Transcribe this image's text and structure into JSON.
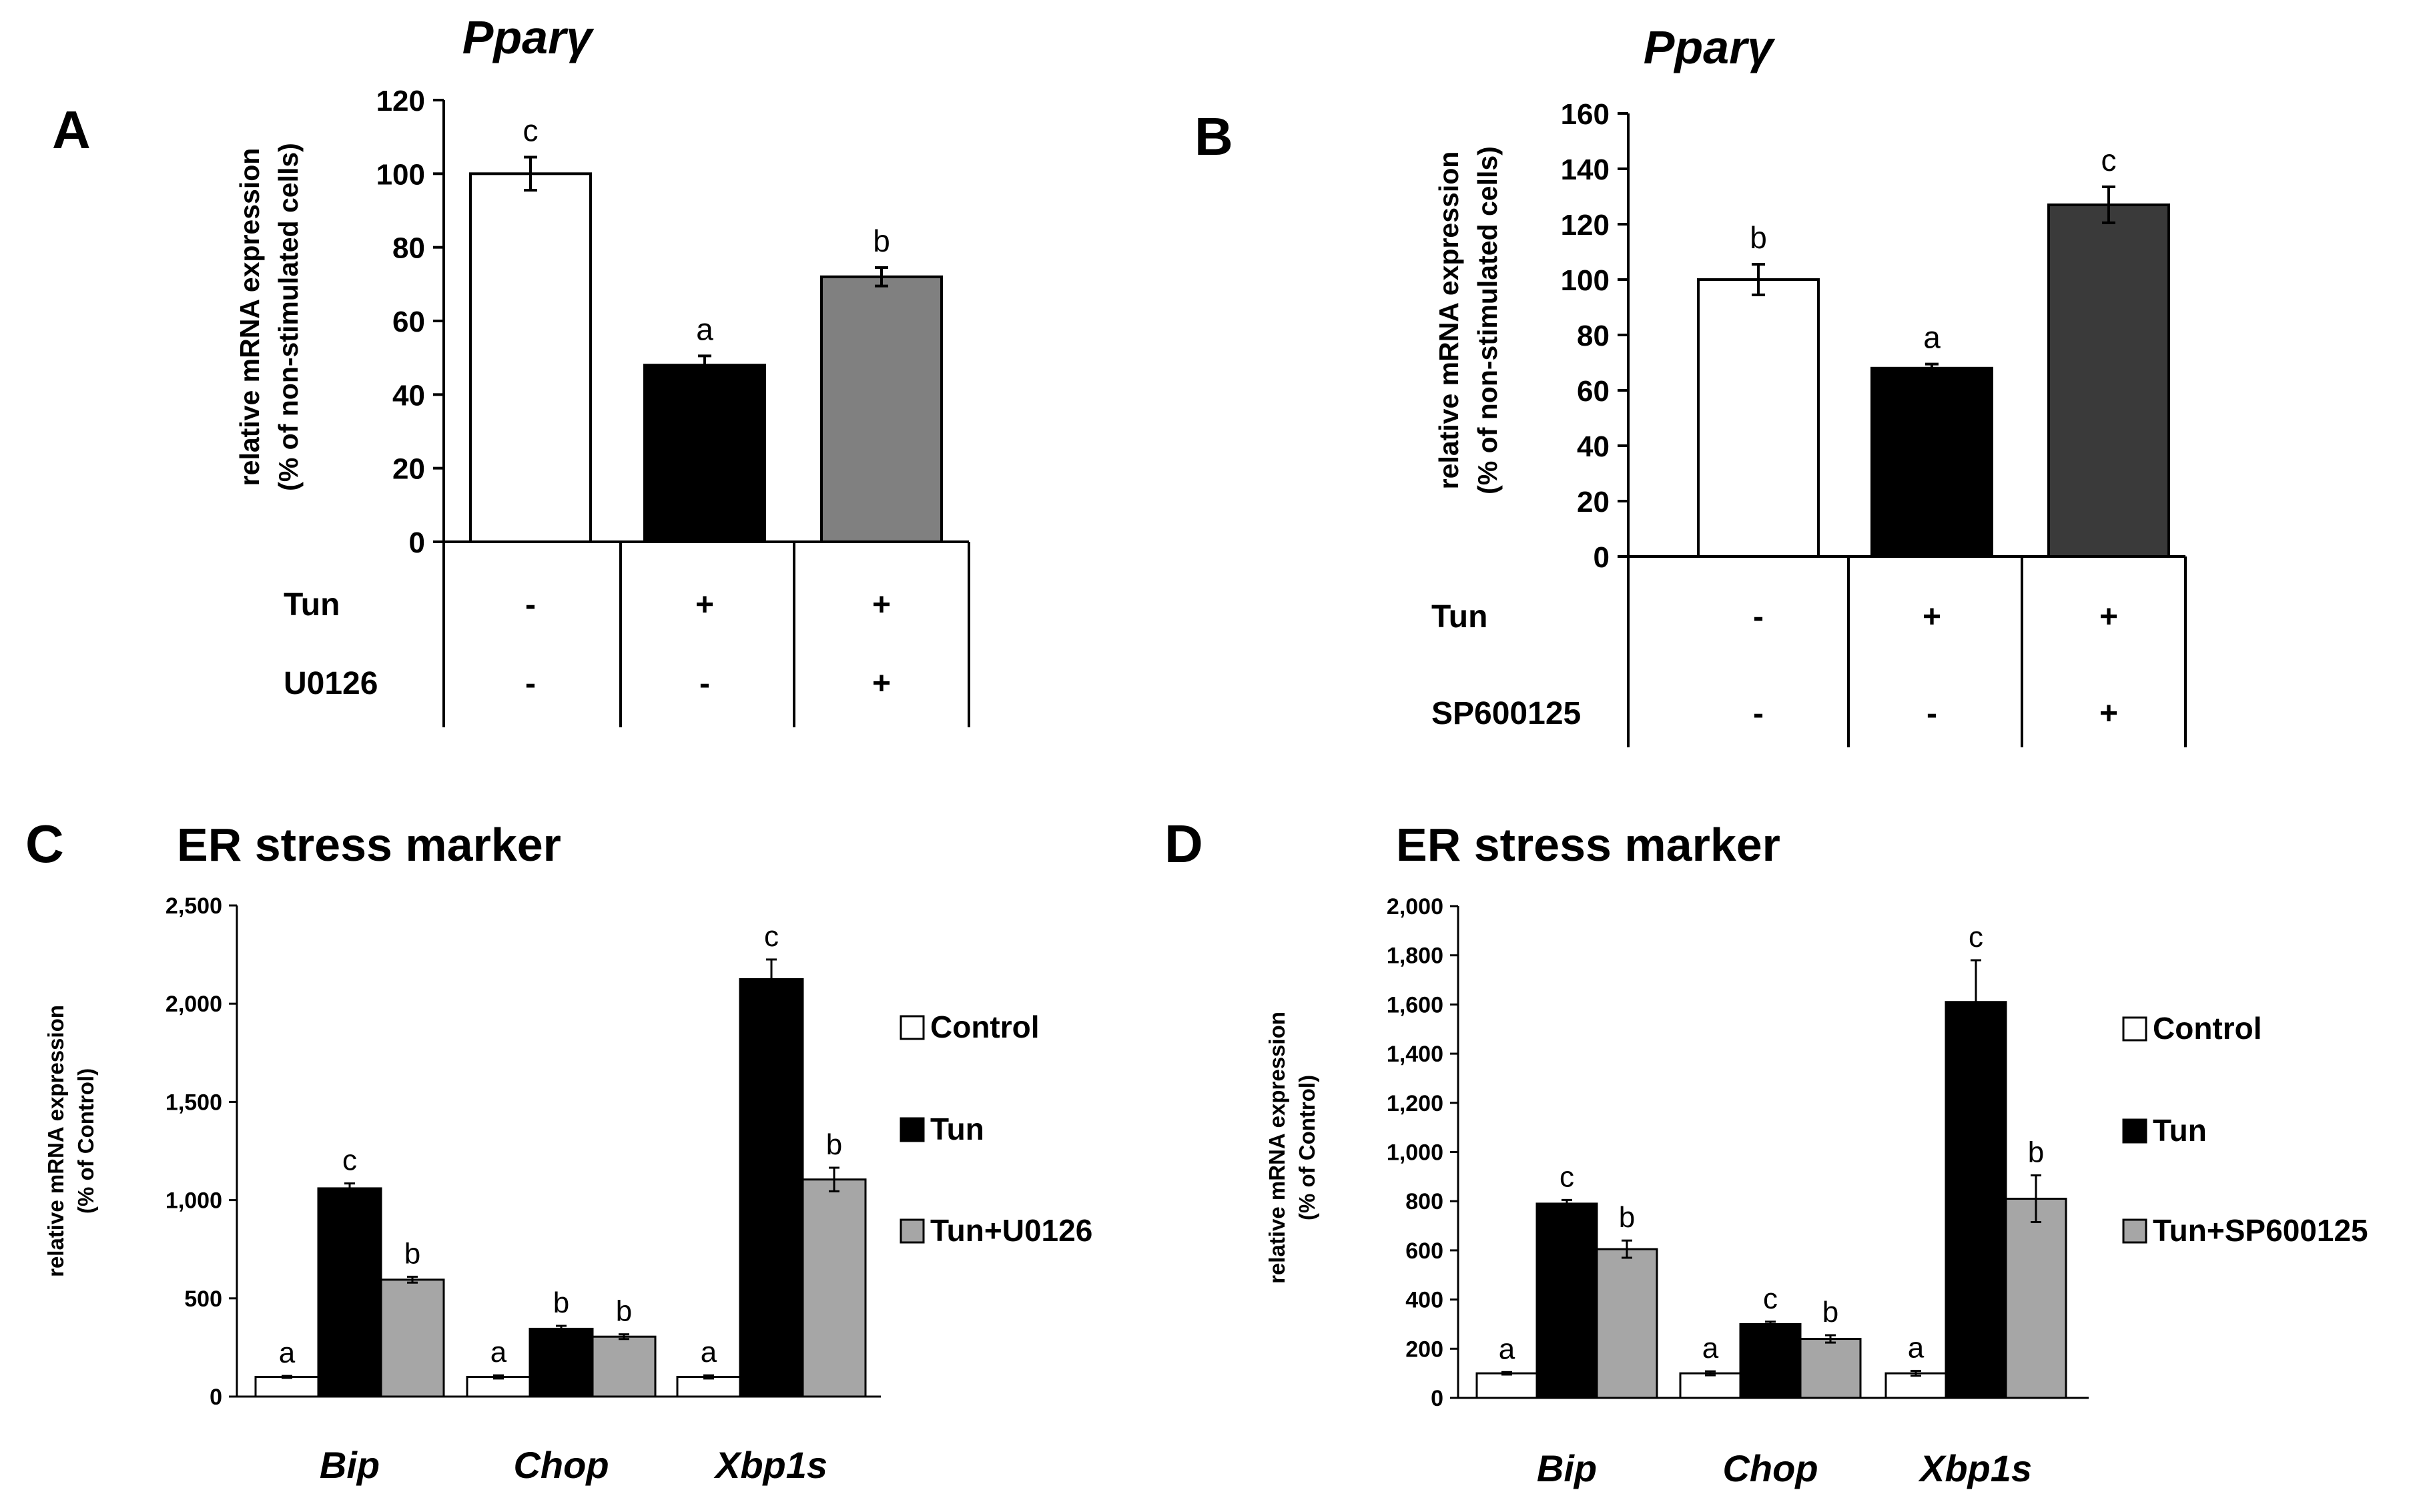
{
  "chart_data": [
    {
      "panel": "A",
      "type": "bar",
      "title": "Pparγ",
      "ylabel": "relative mRNA expression",
      "ylabel2": "(% of non-stimulated cells)",
      "ylim": [
        0,
        120
      ],
      "yticks": [
        "0",
        "20",
        "40",
        "60",
        "80",
        "100",
        "120"
      ],
      "values": [
        100,
        48,
        72
      ],
      "errors": [
        4.5,
        2.5,
        2.5
      ],
      "sig": [
        "c",
        "a",
        "b"
      ],
      "colors": [
        "#ffffff",
        "#000000",
        "#808080"
      ],
      "treatments": [
        {
          "name": "Tun",
          "signs": [
            "-",
            "+",
            "+"
          ]
        },
        {
          "name": "U0126",
          "signs": [
            "-",
            "-",
            "+"
          ]
        }
      ]
    },
    {
      "panel": "B",
      "type": "bar",
      "title": "Pparγ",
      "ylabel": "relative mRNA expression",
      "ylabel2": "(% of non-stimulated cells)",
      "ylim": [
        0,
        160
      ],
      "yticks": [
        "0",
        "20",
        "40",
        "60",
        "80",
        "100",
        "120",
        "140",
        "160"
      ],
      "values": [
        100,
        68,
        127
      ],
      "errors": [
        5.5,
        1.5,
        6.5
      ],
      "sig": [
        "b",
        "a",
        "c"
      ],
      "colors": [
        "#ffffff",
        "#000000",
        "#3a3a3a"
      ],
      "treatments": [
        {
          "name": "Tun",
          "signs": [
            "-",
            "+",
            "+"
          ]
        },
        {
          "name": "SP600125",
          "signs": [
            "-",
            "-",
            "+"
          ]
        }
      ]
    },
    {
      "panel": "C",
      "type": "bar",
      "title": "ER stress marker",
      "ylabel": "relative mRNA expression",
      "ylabel2": "(% of Control)",
      "ylim": [
        0,
        2500
      ],
      "yticks": [
        "0",
        "500",
        "1,000",
        "1,500",
        "2,000",
        "2,500"
      ],
      "categories": [
        "Bip",
        "Chop",
        "Xbp1s"
      ],
      "series": [
        {
          "name": "Control",
          "color": "#ffffff",
          "values": [
            100,
            100,
            100
          ],
          "errors": [
            5,
            8,
            8
          ],
          "sig": [
            "a",
            "a",
            "a"
          ]
        },
        {
          "name": "Tun",
          "color": "#000000",
          "values": [
            1060,
            345,
            2125
          ],
          "errors": [
            25,
            15,
            100
          ],
          "sig": [
            "c",
            "b",
            "c"
          ]
        },
        {
          "name": "Tun+U0126",
          "color": "#a6a6a6",
          "values": [
            595,
            305,
            1105
          ],
          "errors": [
            15,
            12,
            60
          ],
          "sig": [
            "b",
            "b",
            "b"
          ]
        }
      ]
    },
    {
      "panel": "D",
      "type": "bar",
      "title": "ER stress marker",
      "ylabel": "relative mRNA expression",
      "ylabel2": "(% of Control)",
      "ylim": [
        0,
        2000
      ],
      "yticks": [
        "0",
        "200",
        "400",
        "600",
        "800",
        "1,000",
        "1,200",
        "1,400",
        "1,600",
        "1,800",
        "2,000"
      ],
      "categories": [
        "Bip",
        "Chop",
        "Xbp1s"
      ],
      "series": [
        {
          "name": "Control",
          "color": "#ffffff",
          "values": [
            100,
            100,
            100
          ],
          "errors": [
            5,
            8,
            10
          ],
          "sig": [
            "a",
            "a",
            "a"
          ]
        },
        {
          "name": "Tun",
          "color": "#000000",
          "values": [
            790,
            300,
            1610
          ],
          "errors": [
            15,
            10,
            170
          ],
          "sig": [
            "c",
            "c",
            "c"
          ]
        },
        {
          "name": "Tun+SP600125",
          "color": "#a6a6a6",
          "values": [
            605,
            240,
            810
          ],
          "errors": [
            35,
            15,
            95
          ],
          "sig": [
            "b",
            "b",
            "b"
          ]
        }
      ]
    }
  ]
}
